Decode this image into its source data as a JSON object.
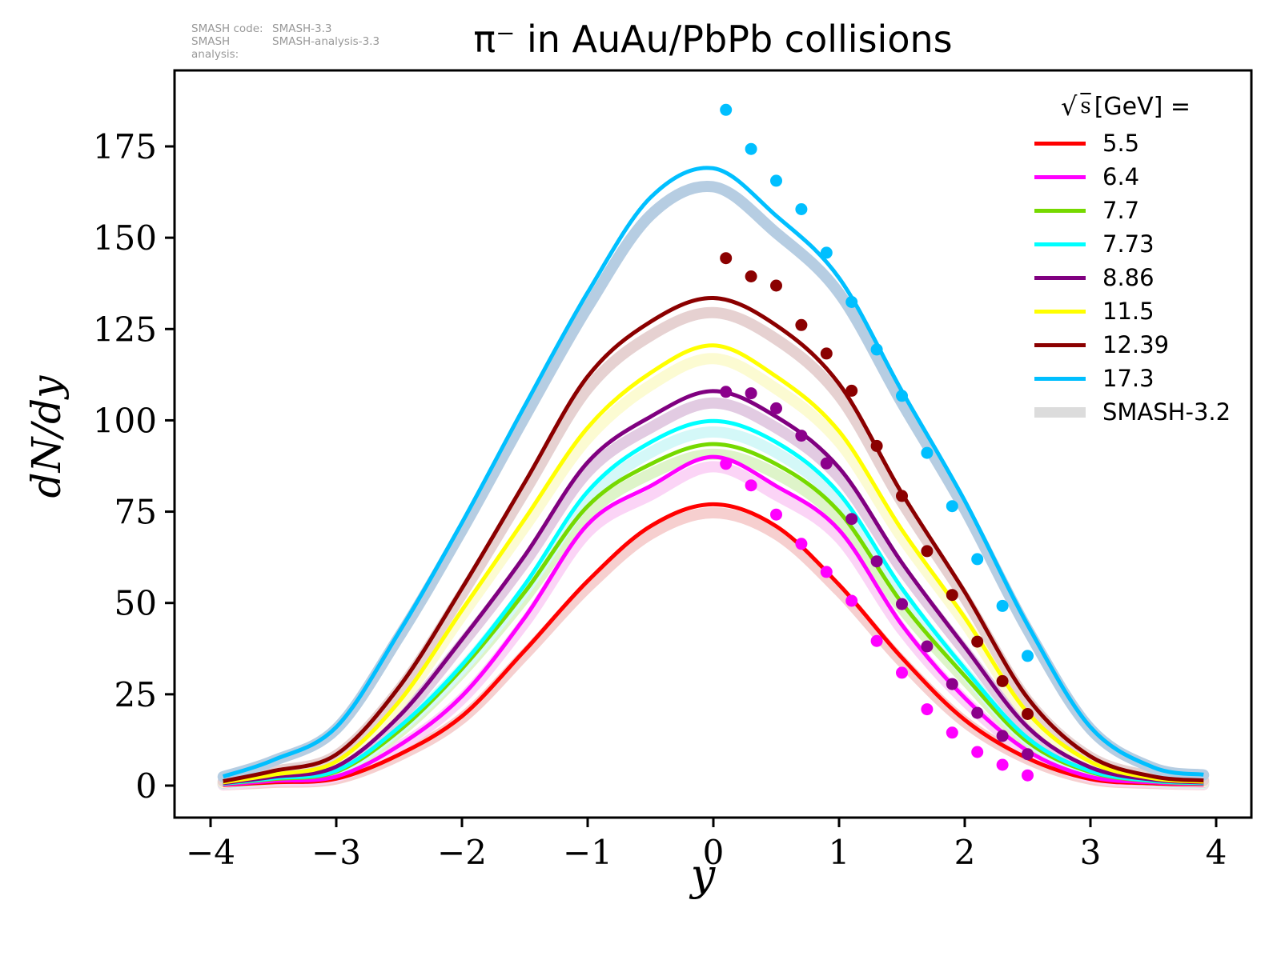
{
  "title": "π⁻ in AuAu/PbPb collisions",
  "watermark": {
    "rows": [
      {
        "label": "SMASH code:",
        "value": "SMASH-3.3"
      },
      {
        "label": "SMASH analysis:",
        "value": "SMASH-analysis-3.3"
      }
    ]
  },
  "axes": {
    "xlabel": "y",
    "ylabel": "dN/dy",
    "x_tick_labels": [
      "−4",
      "−3",
      "−2",
      "−1",
      "0",
      "1",
      "2",
      "3",
      "4"
    ],
    "y_tick_labels": [
      "0",
      "25",
      "50",
      "75",
      "100",
      "125",
      "150",
      "175"
    ]
  },
  "legend": {
    "title_radical": "√",
    "title_arg": "s",
    "title_rest": " [GeV] =",
    "entries": [
      {
        "label": "5.5",
        "color": "#ff0000",
        "thick": false
      },
      {
        "label": "6.4",
        "color": "#ff00ff",
        "thick": false
      },
      {
        "label": "7.7",
        "color": "#76d900",
        "thick": false
      },
      {
        "label": "7.73",
        "color": "#00ffff",
        "thick": false
      },
      {
        "label": "8.86",
        "color": "#800080",
        "thick": false
      },
      {
        "label": "11.5",
        "color": "#ffff00",
        "thick": false
      },
      {
        "label": "12.39",
        "color": "#8b0000",
        "thick": false
      },
      {
        "label": "17.3",
        "color": "#00bfff",
        "thick": false
      },
      {
        "label": "SMASH-3.2",
        "color": "#dcdcdc",
        "thick": true
      }
    ]
  },
  "chart_data": {
    "type": "line",
    "title": "π⁻ in AuAu/PbPb collisions",
    "xlabel": "y",
    "ylabel": "dN/dy",
    "xlim": [
      -4.29,
      4.29
    ],
    "ylim": [
      -8.8,
      195.8
    ],
    "x_ticks": [
      -4,
      -3,
      -2,
      -1,
      0,
      1,
      2,
      3,
      4
    ],
    "y_ticks": [
      0,
      25,
      50,
      75,
      100,
      125,
      150,
      175
    ],
    "grid": false,
    "legend_position": "upper right",
    "band_scale": 0.97,
    "curve_x": [
      -3.9,
      -3.5,
      -3.0,
      -2.5,
      -2.0,
      -1.5,
      -1.0,
      -0.5,
      0.0,
      0.5,
      1.0,
      1.5,
      2.0,
      2.5,
      3.0,
      3.5,
      3.9
    ],
    "series": [
      {
        "name": "5.5",
        "color": "#ff0000",
        "band_color": "#f6cfcf",
        "values": [
          0.2,
          0.9,
          1.9,
          8.5,
          19,
          37,
          56,
          71,
          77,
          71,
          55,
          35,
          18,
          7.5,
          1.8,
          0.6,
          0.3
        ]
      },
      {
        "name": "6.4",
        "color": "#ff00ff",
        "band_color": "#fbd4f6",
        "values": [
          0.3,
          1.3,
          2.5,
          11,
          24.5,
          46,
          71.5,
          82,
          90,
          82,
          70,
          44,
          24,
          9.5,
          2.4,
          0.9,
          0.4
        ]
      },
      {
        "name": "7.7",
        "color": "#76d900",
        "band_color": "#def4c9",
        "values": [
          0.5,
          1.8,
          3.8,
          15,
          32,
          53,
          76.5,
          88,
          93.5,
          88,
          75,
          50,
          30,
          12,
          3.7,
          1.2,
          0.6
        ]
      },
      {
        "name": "7.73",
        "color": "#00ffff",
        "band_color": "#d4f8f8",
        "values": [
          0.5,
          2.0,
          4.1,
          16,
          33,
          55,
          80.5,
          94,
          99.8,
          94,
          80,
          54,
          32,
          13,
          4.0,
          1.3,
          0.7
        ]
      },
      {
        "name": "8.86",
        "color": "#800080",
        "band_color": "#e2cbe2",
        "values": [
          0.7,
          2.4,
          5.2,
          19,
          40,
          63,
          88.5,
          101,
          108,
          101,
          87,
          61,
          38,
          16,
          5.0,
          1.6,
          0.9
        ]
      },
      {
        "name": "11.5",
        "color": "#ffff00",
        "band_color": "#fcfbd2",
        "values": [
          0.9,
          3.0,
          6.6,
          23,
          48,
          73,
          98,
          113,
          120.5,
          112,
          97,
          70,
          46,
          20,
          6.5,
          2.0,
          1.1
        ]
      },
      {
        "name": "12.39",
        "color": "#8b0000",
        "band_color": "#e6d1d1",
        "values": [
          1.2,
          4.0,
          8.5,
          27,
          54,
          83,
          112,
          127,
          133.5,
          126,
          110,
          80,
          53,
          24,
          8.0,
          2.5,
          1.4
        ]
      },
      {
        "name": "17.3",
        "color": "#00bfff",
        "band_color": "#b6cde2",
        "values": [
          2.5,
          7.0,
          16,
          42,
          72,
          104,
          135,
          161,
          169,
          156,
          139,
          108,
          78,
          44,
          16,
          5.0,
          3.0
        ]
      }
    ],
    "scatter_x": [
      0.1,
      0.3,
      0.5,
      0.7,
      0.9,
      1.1,
      1.3,
      1.5,
      1.7,
      1.9,
      2.1,
      2.3,
      2.5
    ],
    "scatter": [
      {
        "series": "6.4",
        "color": "#ff00ff",
        "values": [
          88.1,
          82.2,
          74.2,
          66.2,
          58.5,
          50.6,
          39.6,
          30.9,
          20.9,
          14.5,
          9.2,
          5.7,
          2.8
        ]
      },
      {
        "series": "8.86",
        "color": "#8b008b",
        "values": [
          107.8,
          107.4,
          103.3,
          95.8,
          88.2,
          73.0,
          61.4,
          49.7,
          38.1,
          27.8,
          19.9,
          13.6,
          8.6
        ]
      },
      {
        "series": "12.39",
        "color": "#8b0000",
        "values": [
          144.4,
          139.4,
          136.9,
          126.1,
          118.3,
          108.1,
          93.0,
          79.3,
          64.2,
          52.2,
          39.4,
          28.6,
          19.6
        ]
      },
      {
        "series": "17.3",
        "color": "#00bfff",
        "values": [
          185.0,
          174.3,
          165.6,
          157.8,
          145.9,
          132.4,
          119.4,
          106.7,
          91.1,
          76.5,
          62.0,
          49.2,
          35.5
        ]
      }
    ],
    "smash_band_legend": {
      "label": "SMASH-3.2",
      "color": "#dcdcdc"
    }
  }
}
